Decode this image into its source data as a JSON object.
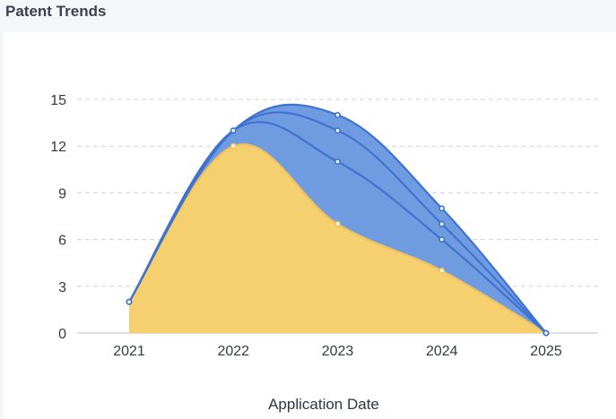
{
  "panel": {
    "title": "Patent Trends"
  },
  "chart_data": {
    "type": "area",
    "x": [
      "2021",
      "2022",
      "2023",
      "2024",
      "2025"
    ],
    "xlabel": "Application Date",
    "ylabel": "",
    "ylim": [
      0,
      15
    ],
    "yticks": [
      0,
      3,
      6,
      9,
      12,
      15
    ],
    "grid": "horizontal dashed",
    "smooth": true,
    "series": [
      {
        "color": "#f6cf6e",
        "line": "#f0c05a",
        "values": [
          2,
          12,
          7,
          4,
          0
        ]
      },
      {
        "color": "#6f9be0",
        "line": "#3f73d0",
        "values": [
          2,
          13,
          11,
          6,
          0
        ]
      },
      {
        "color": "#6f9be0",
        "line": "#3f73d0",
        "values": [
          2,
          13,
          13,
          7,
          0
        ]
      },
      {
        "color": "#6f9be0",
        "line": "#3f73d0",
        "values": [
          2,
          13,
          14,
          8,
          0
        ]
      }
    ]
  }
}
